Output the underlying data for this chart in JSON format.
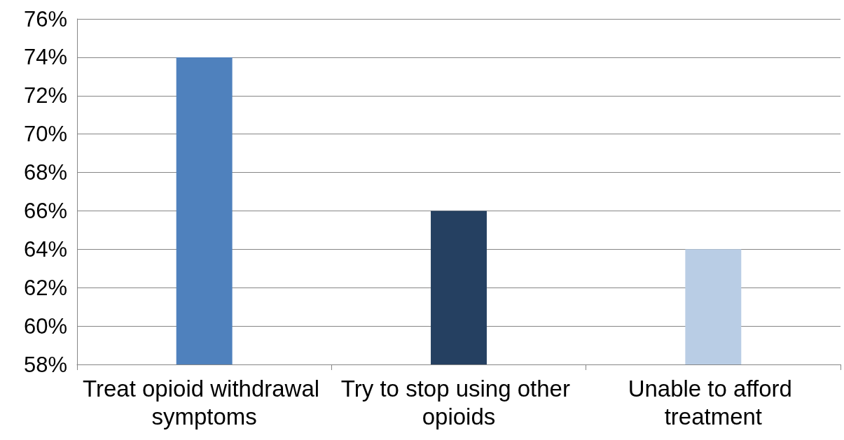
{
  "chart_data": {
    "type": "bar",
    "categories": [
      "Treat opioid withdrawal symptoms",
      "Try to stop using other opioids",
      "Unable to afford treatment"
    ],
    "values": [
      74,
      66,
      64
    ],
    "colors": [
      "#4f81bd",
      "#254061",
      "#b9cde5"
    ],
    "ylim": [
      58,
      76
    ],
    "yticks": [
      {
        "value": 58,
        "label": "58%"
      },
      {
        "value": 60,
        "label": "60%"
      },
      {
        "value": 62,
        "label": "62%"
      },
      {
        "value": 64,
        "label": "64%"
      },
      {
        "value": 66,
        "label": "66%"
      },
      {
        "value": 68,
        "label": "68%"
      },
      {
        "value": 70,
        "label": "70%"
      },
      {
        "value": 72,
        "label": "72%"
      },
      {
        "value": 74,
        "label": "74%"
      },
      {
        "value": 76,
        "label": "76%"
      }
    ],
    "grid": "y"
  }
}
